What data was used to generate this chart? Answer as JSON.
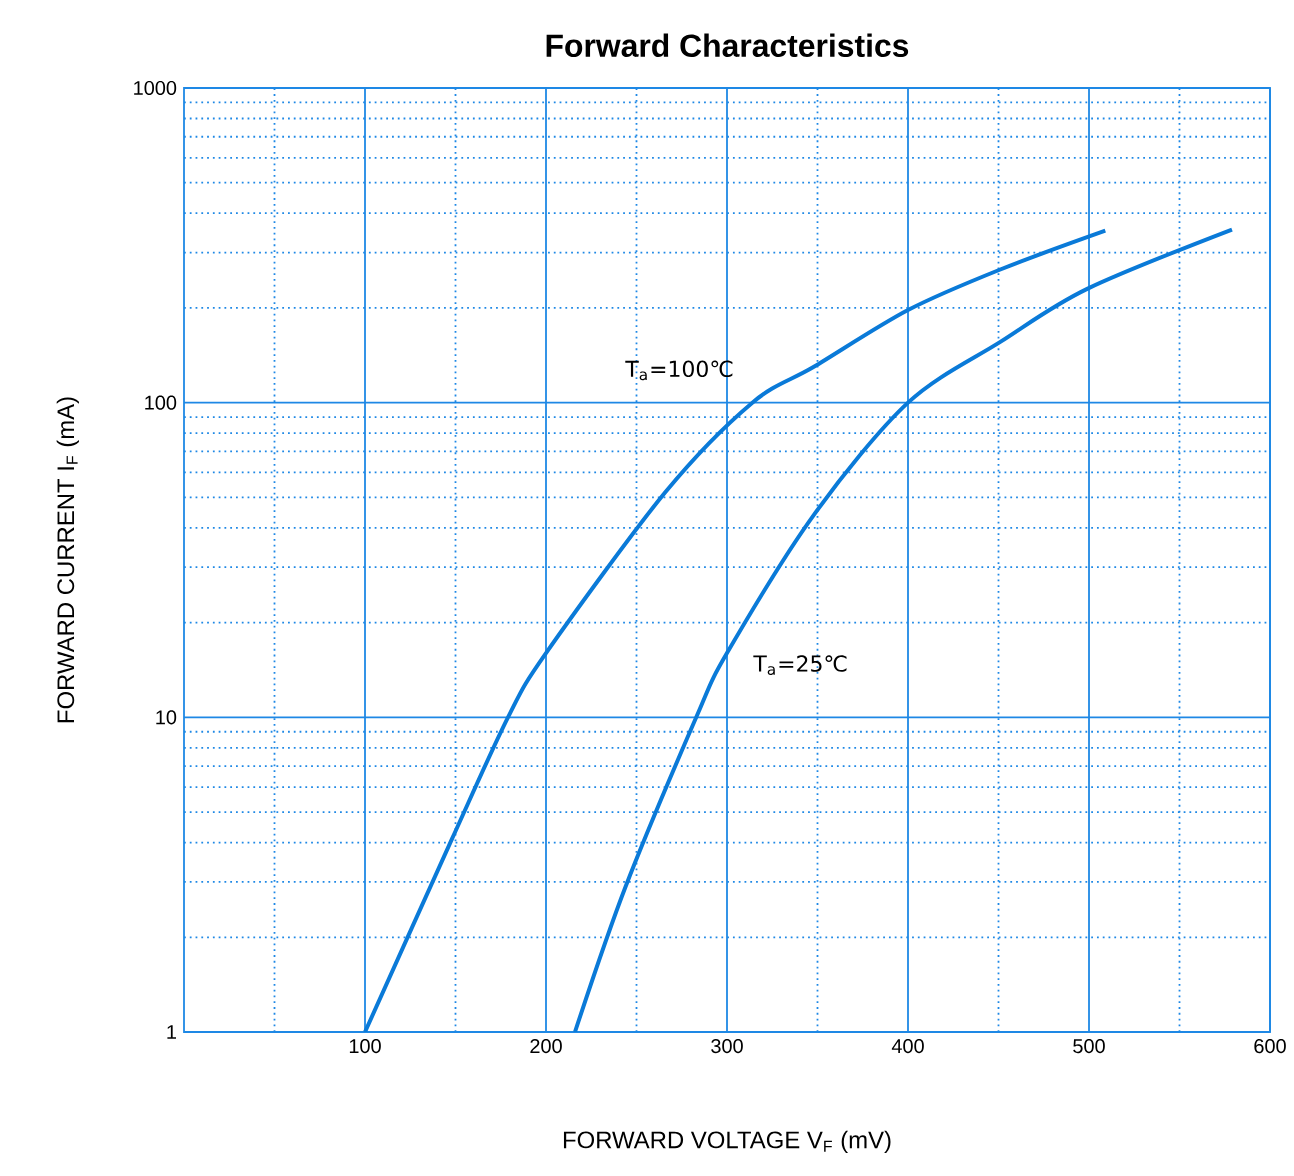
{
  "chart_data": {
    "type": "line",
    "title": "Forward    Characteristics",
    "xlabel": "FORWARD VOLTAGE    V$_{F}$    (mV)",
    "ylabel": "FORWARD CURRENT    I$_{F}$    (mA)",
    "log": "y",
    "grid": true,
    "line_style": "solid",
    "marker": "none",
    "xlim": [
      0,
      600
    ],
    "xticks": [
      {
        "value": 50,
        "label": null
      },
      100,
      {
        "value": 150,
        "label": null
      },
      200,
      {
        "value": 250,
        "label": null
      },
      300,
      {
        "value": 350,
        "label": null
      },
      400,
      {
        "value": 450,
        "label": null
      },
      500,
      {
        "value": 550,
        "label": null
      },
      600
    ],
    "ylim": [
      1,
      1000
    ],
    "yticks": [
      1,
      {
        "value": 2,
        "label": null
      },
      {
        "value": 3,
        "label": null
      },
      {
        "value": 4,
        "label": null
      },
      {
        "value": 5,
        "label": null
      },
      {
        "value": 6,
        "label": null
      },
      {
        "value": 7,
        "label": null
      },
      {
        "value": 8,
        "label": null
      },
      {
        "value": 9,
        "label": null
      },
      10,
      {
        "value": 20,
        "label": null
      },
      {
        "value": 30,
        "label": null
      },
      {
        "value": 40,
        "label": null
      },
      {
        "value": 50,
        "label": null
      },
      {
        "value": 60,
        "label": null
      },
      {
        "value": 70,
        "label": null
      },
      {
        "value": 80,
        "label": null
      },
      {
        "value": 90,
        "label": null
      },
      100,
      {
        "value": 200,
        "label": null
      },
      {
        "value": 300,
        "label": null
      },
      {
        "value": 400,
        "label": null
      },
      {
        "value": 500,
        "label": null
      },
      {
        "value": 600,
        "label": null
      },
      {
        "value": 700,
        "label": null
      },
      {
        "value": 800,
        "label": null
      },
      {
        "value": 900,
        "label": null
      },
      1000
    ],
    "series": [
      {
        "color": "#0a7ad8",
        "x": [
          100,
          148,
          179,
          200,
          266,
          314,
          348,
          400,
          451,
          509
        ],
        "values": [
          1,
          4.1,
          10,
          16,
          52,
          100,
          130,
          197,
          265,
          352
        ]
      },
      {
        "color": "#0a7ad8",
        "x": [
          216,
          244,
          283,
          300,
          348,
          400,
          451,
          499,
          579
        ],
        "values": [
          1,
          2.9,
          10,
          16,
          44,
          100,
          156,
          230,
          355
        ]
      }
    ],
    "annotations": [
      "T$_{a}$=100℃",
      "T$_{a}$=25℃"
    ]
  }
}
